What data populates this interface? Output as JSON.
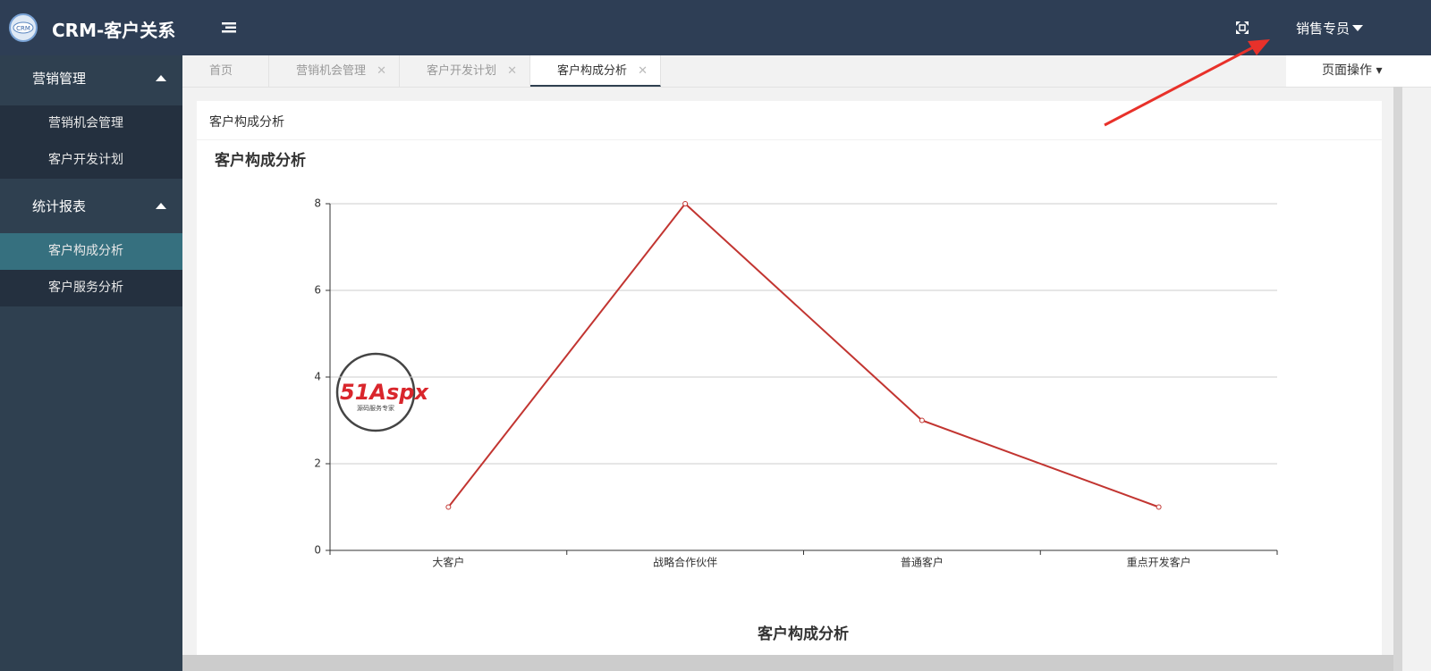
{
  "header": {
    "logo_text": "CRM",
    "title": "CRM-客户关系",
    "user": "销售专员"
  },
  "sidebar": {
    "groups": [
      {
        "label": "营销管理",
        "items": [
          "营销机会管理",
          "客户开发计划"
        ]
      },
      {
        "label": "统计报表",
        "items": [
          "客户构成分析",
          "客户服务分析"
        ]
      }
    ]
  },
  "tabs": [
    "首页",
    "营销机会管理",
    "客户开发计划",
    "客户构成分析"
  ],
  "page_ops": "页面操作",
  "panel": {
    "heading": "客户构成分析"
  },
  "watermark": {
    "brand": "51Aspx",
    "slogan": "源码服务专家"
  },
  "chart_data": {
    "type": "line",
    "title": "客户构成分析",
    "categories": [
      "大客户",
      "战略合作伙伴",
      "普通客户",
      "重点开发客户"
    ],
    "values": [
      1,
      8,
      3,
      1
    ],
    "color": "#c23531",
    "ylim": [
      0,
      8
    ],
    "yticks": [
      0,
      2,
      4,
      6,
      8
    ],
    "grid": true
  },
  "second_chart": {
    "title": "客户构成分析"
  }
}
